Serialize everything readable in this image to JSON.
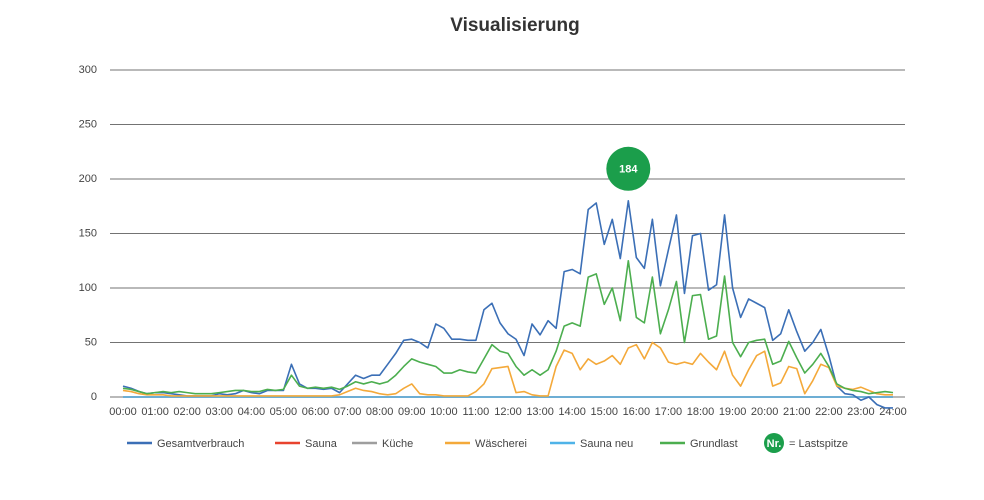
{
  "chart_data": {
    "type": "line",
    "title": "Visualisierung",
    "categories": [
      "00:00",
      null,
      null,
      null,
      "01:00",
      null,
      null,
      null,
      "02:00",
      null,
      null,
      null,
      "03:00",
      null,
      null,
      null,
      "04:00",
      null,
      null,
      null,
      "05:00",
      null,
      null,
      null,
      "06:00",
      null,
      null,
      null,
      "07:00",
      null,
      null,
      null,
      "08:00",
      null,
      null,
      null,
      "09:00",
      null,
      null,
      null,
      "10:00",
      null,
      null,
      null,
      "11:00",
      null,
      null,
      null,
      "12:00",
      null,
      null,
      null,
      "13:00",
      null,
      null,
      null,
      "14:00",
      null,
      null,
      null,
      "15:00",
      null,
      null,
      null,
      "16:00",
      null,
      null,
      null,
      "17:00",
      null,
      null,
      null,
      "18:00",
      null,
      null,
      null,
      "19:00",
      null,
      null,
      null,
      "20:00",
      null,
      null,
      null,
      "21:00",
      null,
      null,
      null,
      "22:00",
      null,
      null,
      null,
      "23:00",
      null,
      null,
      null,
      "24:00"
    ],
    "series": [
      {
        "name": "Gesamtverbrauch",
        "color": "#3b6fb6",
        "values": [
          10,
          8,
          5,
          3,
          4,
          4,
          3,
          2,
          1,
          1,
          1,
          1,
          3,
          2,
          3,
          6,
          4,
          3,
          6,
          6,
          6,
          30,
          12,
          8,
          8,
          7,
          8,
          4,
          12,
          20,
          17,
          20,
          20,
          30,
          40,
          52,
          53,
          50,
          45,
          67,
          63,
          53,
          53,
          52,
          52,
          80,
          86,
          68,
          58,
          53,
          38,
          67,
          57,
          70,
          63,
          115,
          117,
          113,
          172,
          178,
          140,
          163,
          127,
          180,
          128,
          118,
          163,
          102,
          135,
          167,
          95,
          148,
          150,
          98,
          103,
          167,
          100,
          73,
          90,
          86,
          82,
          52,
          58,
          80,
          60,
          42,
          50,
          62,
          38,
          10,
          3,
          2,
          -3,
          0,
          -7,
          -10,
          -10
        ]
      },
      {
        "name": "Sauna",
        "color": "#e8432e",
        "values": [
          0,
          0,
          0,
          0,
          0,
          0,
          0,
          0,
          0,
          0,
          0,
          0,
          0,
          0,
          0,
          0,
          0,
          0,
          0,
          0,
          0,
          0,
          0,
          0,
          0,
          0,
          0,
          0,
          0,
          0,
          0,
          0,
          0,
          0,
          0,
          0,
          0,
          0,
          0,
          0,
          0,
          0,
          0,
          0,
          0,
          0,
          0,
          0,
          0,
          0,
          0,
          0,
          0,
          0,
          0,
          0,
          0,
          0,
          0,
          0,
          0,
          0,
          0,
          0,
          0,
          0,
          0,
          0,
          0,
          0,
          0,
          0,
          0,
          0,
          0,
          0,
          0,
          0,
          0,
          0,
          0,
          0,
          0,
          0,
          0,
          0,
          0,
          0,
          0,
          0,
          0,
          0,
          0,
          0,
          0,
          0,
          0
        ]
      },
      {
        "name": "Küche",
        "color": "#9e9e9e",
        "values": [
          0,
          0,
          0,
          0,
          0,
          0,
          0,
          0,
          0,
          0,
          0,
          0,
          0,
          0,
          0,
          0,
          0,
          0,
          0,
          0,
          0,
          0,
          0,
          0,
          0,
          0,
          0,
          0,
          0,
          0,
          0,
          0,
          0,
          0,
          0,
          0,
          0,
          0,
          0,
          0,
          0,
          0,
          0,
          0,
          0,
          0,
          0,
          0,
          0,
          0,
          0,
          0,
          0,
          0,
          0,
          0,
          0,
          0,
          0,
          0,
          0,
          0,
          0,
          0,
          0,
          0,
          0,
          0,
          0,
          0,
          0,
          0,
          0,
          0,
          0,
          0,
          0,
          0,
          0,
          0,
          0,
          0,
          0,
          0,
          0,
          0,
          0,
          0,
          0,
          0,
          0,
          0,
          0,
          0,
          0,
          0,
          0
        ]
      },
      {
        "name": "Wäscherei",
        "color": "#f4a93a",
        "values": [
          6,
          5,
          3,
          2,
          2,
          2,
          1,
          1,
          1,
          1,
          1,
          1,
          1,
          1,
          1,
          1,
          1,
          1,
          1,
          1,
          1,
          1,
          1,
          1,
          1,
          1,
          1,
          2,
          5,
          8,
          6,
          5,
          3,
          2,
          3,
          8,
          12,
          3,
          2,
          2,
          1,
          1,
          1,
          1,
          5,
          12,
          26,
          27,
          28,
          4,
          5,
          2,
          1,
          1,
          28,
          43,
          40,
          25,
          35,
          30,
          33,
          38,
          30,
          45,
          48,
          35,
          50,
          45,
          32,
          30,
          32,
          30,
          40,
          32,
          25,
          42,
          20,
          10,
          25,
          38,
          42,
          10,
          13,
          28,
          26,
          3,
          15,
          30,
          27,
          10,
          8,
          7,
          9,
          6,
          3,
          2,
          2
        ]
      },
      {
        "name": "Sauna neu",
        "color": "#4fb3e8",
        "values": [
          0,
          0,
          0,
          0,
          0,
          0,
          0,
          0,
          0,
          0,
          0,
          0,
          0,
          0,
          0,
          0,
          0,
          0,
          0,
          0,
          0,
          0,
          0,
          0,
          0,
          0,
          0,
          0,
          0,
          0,
          0,
          0,
          0,
          0,
          0,
          0,
          0,
          0,
          0,
          0,
          0,
          0,
          0,
          0,
          0,
          0,
          0,
          0,
          0,
          0,
          0,
          0,
          0,
          0,
          0,
          0,
          0,
          0,
          0,
          0,
          0,
          0,
          0,
          0,
          0,
          0,
          0,
          0,
          0,
          0,
          0,
          0,
          0,
          0,
          0,
          0,
          0,
          0,
          0,
          0,
          0,
          0,
          0,
          0,
          0,
          0,
          0,
          0,
          0,
          0,
          0,
          0,
          0,
          0,
          0,
          0,
          0
        ]
      },
      {
        "name": "Grundlast",
        "color": "#4cae4f",
        "values": [
          8,
          7,
          5,
          3,
          4,
          5,
          4,
          5,
          4,
          3,
          3,
          3,
          4,
          5,
          6,
          6,
          5,
          5,
          7,
          6,
          7,
          20,
          10,
          8,
          9,
          8,
          9,
          7,
          10,
          14,
          12,
          14,
          12,
          14,
          20,
          28,
          35,
          32,
          30,
          28,
          22,
          22,
          25,
          23,
          22,
          35,
          48,
          42,
          40,
          28,
          20,
          25,
          20,
          25,
          42,
          65,
          68,
          65,
          110,
          113,
          85,
          100,
          70,
          125,
          73,
          68,
          110,
          58,
          80,
          106,
          50,
          93,
          94,
          53,
          56,
          111,
          50,
          37,
          50,
          52,
          53,
          30,
          33,
          51,
          36,
          22,
          30,
          40,
          28,
          12,
          8,
          6,
          5,
          3,
          4,
          5,
          4
        ]
      }
    ],
    "annotation": {
      "label": "184",
      "color": "#1b9e4b"
    },
    "legend_marker": {
      "label": "Nr.",
      "text": "= Lastspitze"
    },
    "ylim": [
      0,
      300
    ],
    "yticks": [
      0,
      50,
      100,
      150,
      200,
      250,
      300
    ],
    "grid": true
  }
}
